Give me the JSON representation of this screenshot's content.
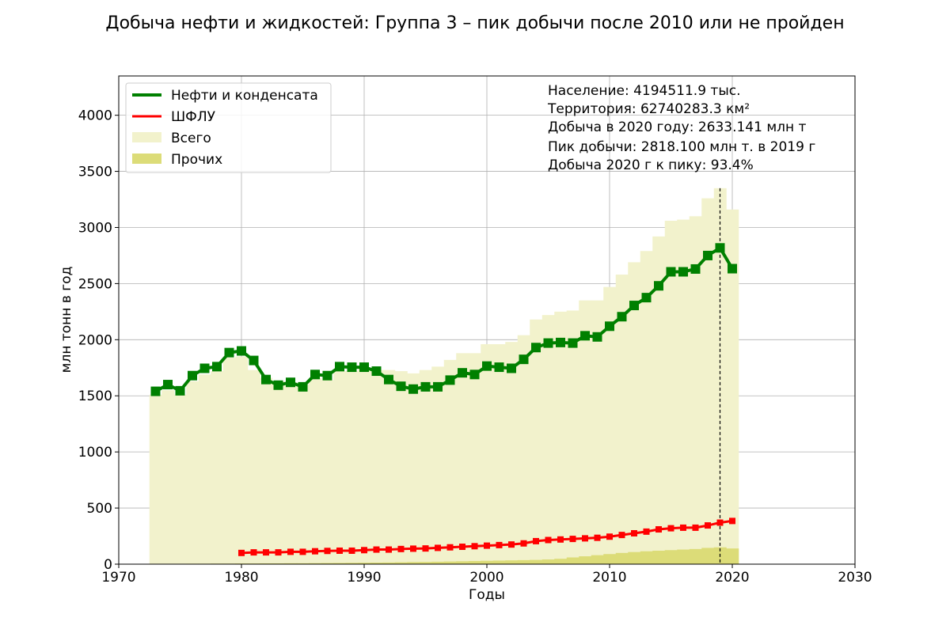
{
  "chart_data": {
    "type": "bar",
    "title": "Добыча нефти и жидкостей: Группа 3 – пик добычи после 2010 или не пройден",
    "xlabel": "Годы",
    "ylabel": "млн тонн в год",
    "xlim": [
      1970,
      2030
    ],
    "ylim": [
      0,
      4350
    ],
    "x_ticks": [
      1970,
      1980,
      1990,
      2000,
      2010,
      2020,
      2030
    ],
    "y_ticks": [
      0,
      500,
      1000,
      1500,
      2000,
      2500,
      3000,
      3500,
      4000
    ],
    "grid": true,
    "legend_position": "upper-left",
    "peak_marker_year": 2019,
    "colors": {
      "oil": "#008000",
      "ngl": "#ff0000",
      "total": "#f2f2cc",
      "other": "#dcdc78"
    },
    "legend": {
      "oil": "Нефти и конденсата",
      "ngl": "ШФЛУ",
      "total": "Всего",
      "other": "Прочих"
    },
    "annotations": [
      "Население: 4194511.9 тыс.",
      "Территория: 62740283.3 км²",
      "Добыча в 2020 году: 2633.141 млн т",
      "Пик добычи: 2818.100 млн т. в 2019 г",
      "Добыча 2020 г к пику: 93.4%"
    ],
    "series": [
      {
        "name": "Нефти и конденсата",
        "type": "line",
        "x": [
          1973,
          1974,
          1975,
          1976,
          1977,
          1978,
          1979,
          1980,
          1981,
          1982,
          1983,
          1984,
          1985,
          1986,
          1987,
          1988,
          1989,
          1990,
          1991,
          1992,
          1993,
          1994,
          1995,
          1996,
          1997,
          1998,
          1999,
          2000,
          2001,
          2002,
          2003,
          2004,
          2005,
          2006,
          2007,
          2008,
          2009,
          2010,
          2011,
          2012,
          2013,
          2014,
          2015,
          2016,
          2017,
          2018,
          2019,
          2020
        ],
        "values": [
          1540,
          1600,
          1545,
          1680,
          1745,
          1760,
          1885,
          1900,
          1815,
          1645,
          1595,
          1620,
          1580,
          1690,
          1680,
          1760,
          1755,
          1755,
          1720,
          1645,
          1585,
          1560,
          1580,
          1580,
          1640,
          1705,
          1690,
          1765,
          1755,
          1745,
          1825,
          1930,
          1970,
          1975,
          1970,
          2035,
          2025,
          2120,
          2205,
          2305,
          2375,
          2480,
          2605,
          2605,
          2630,
          2750,
          2818,
          2633
        ]
      },
      {
        "name": "ШФЛУ",
        "type": "line",
        "x": [
          1980,
          1981,
          1982,
          1983,
          1984,
          1985,
          1986,
          1987,
          1988,
          1989,
          1990,
          1991,
          1992,
          1993,
          1994,
          1995,
          1996,
          1997,
          1998,
          1999,
          2000,
          2001,
          2002,
          2003,
          2004,
          2005,
          2006,
          2007,
          2008,
          2009,
          2010,
          2011,
          2012,
          2013,
          2014,
          2015,
          2016,
          2017,
          2018,
          2019,
          2020
        ],
        "values": [
          100,
          105,
          105,
          105,
          110,
          110,
          115,
          118,
          120,
          120,
          125,
          130,
          130,
          135,
          138,
          140,
          145,
          150,
          155,
          160,
          165,
          170,
          175,
          185,
          205,
          215,
          220,
          225,
          230,
          235,
          245,
          260,
          275,
          290,
          310,
          320,
          325,
          325,
          345,
          370,
          385
        ]
      },
      {
        "name": "Всего",
        "type": "bar",
        "x": [
          1973,
          1974,
          1975,
          1976,
          1977,
          1978,
          1979,
          1980,
          1981,
          1982,
          1983,
          1984,
          1985,
          1986,
          1987,
          1988,
          1989,
          1990,
          1991,
          1992,
          1993,
          1994,
          1995,
          1996,
          1997,
          1998,
          1999,
          2000,
          2001,
          2002,
          2003,
          2004,
          2005,
          2006,
          2007,
          2008,
          2009,
          2010,
          2011,
          2012,
          2013,
          2014,
          2015,
          2016,
          2017,
          2018,
          2019,
          2020
        ],
        "values": [
          1510,
          1550,
          1510,
          1630,
          1690,
          1720,
          1840,
          1850,
          1730,
          1660,
          1630,
          1620,
          1600,
          1660,
          1640,
          1720,
          1720,
          1740,
          1730,
          1730,
          1720,
          1700,
          1730,
          1760,
          1820,
          1880,
          1880,
          1960,
          1960,
          1980,
          2040,
          2180,
          2220,
          2250,
          2260,
          2350,
          2350,
          2470,
          2580,
          2690,
          2790,
          2920,
          3060,
          3070,
          3100,
          3260,
          3350,
          3160
        ]
      },
      {
        "name": "Прочих",
        "type": "bar",
        "x": [
          1973,
          1974,
          1975,
          1976,
          1977,
          1978,
          1979,
          1980,
          1981,
          1982,
          1983,
          1984,
          1985,
          1986,
          1987,
          1988,
          1989,
          1990,
          1991,
          1992,
          1993,
          1994,
          1995,
          1996,
          1997,
          1998,
          1999,
          2000,
          2001,
          2002,
          2003,
          2004,
          2005,
          2006,
          2007,
          2008,
          2009,
          2010,
          2011,
          2012,
          2013,
          2014,
          2015,
          2016,
          2017,
          2018,
          2019,
          2020
        ],
        "values": [
          3,
          3,
          3,
          4,
          4,
          5,
          5,
          6,
          6,
          7,
          7,
          8,
          8,
          9,
          10,
          11,
          12,
          13,
          14,
          15,
          17,
          19,
          20,
          22,
          24,
          26,
          28,
          30,
          32,
          34,
          36,
          38,
          42,
          48,
          60,
          70,
          80,
          90,
          100,
          108,
          115,
          120,
          125,
          130,
          135,
          145,
          150,
          140
        ]
      }
    ]
  }
}
